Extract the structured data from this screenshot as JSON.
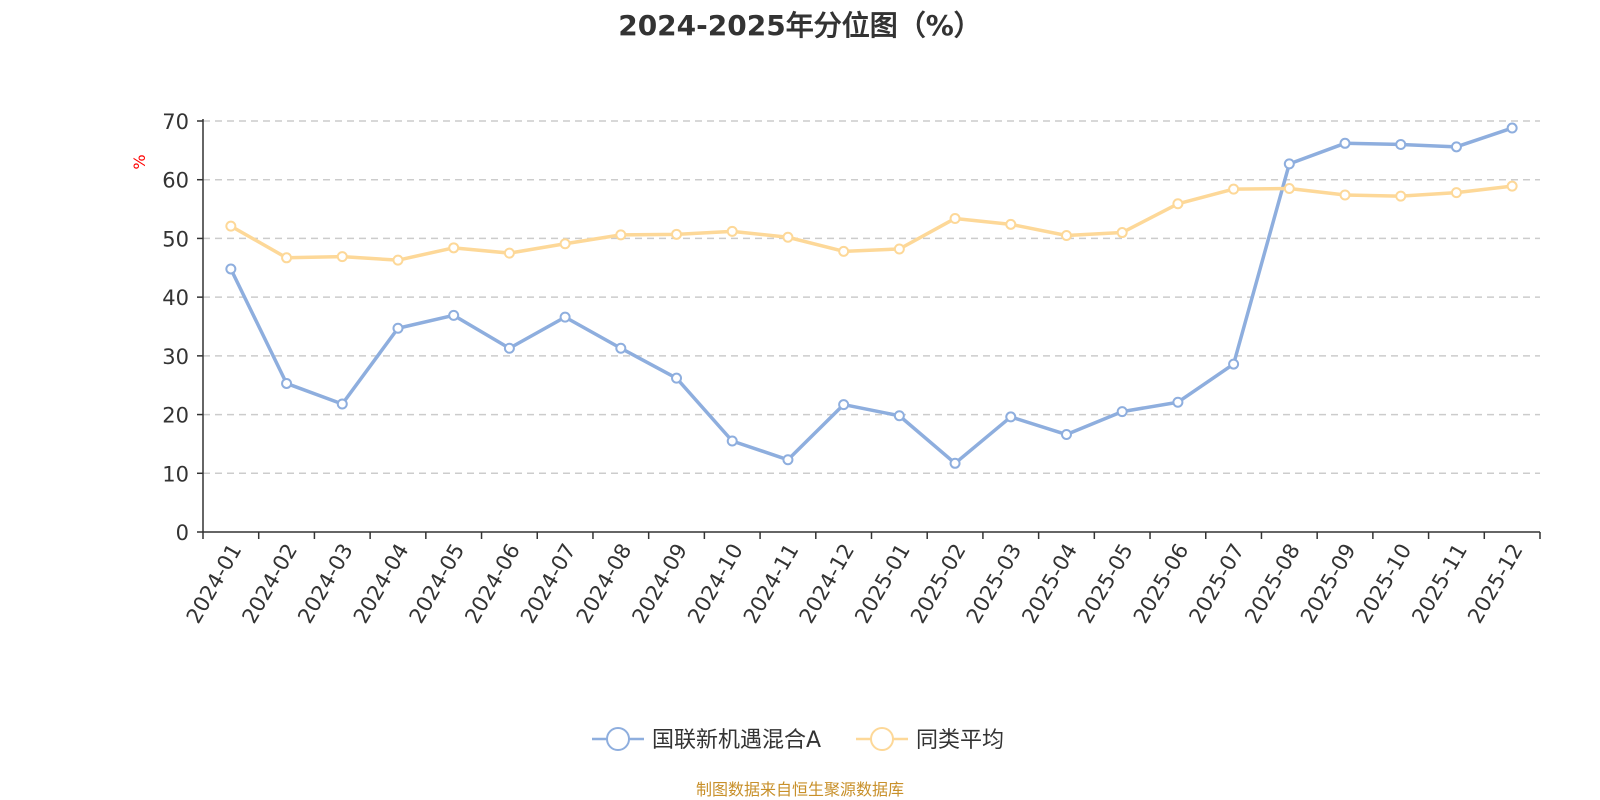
{
  "colors": {
    "series_a": "#8eaede",
    "series_b": "#fdd898",
    "axis": "#333333",
    "grid": "#cccccc",
    "unit": "#ff0000",
    "source": "#c8902a"
  },
  "chart_data": {
    "type": "line",
    "title": "2024-2025年分位图（%）",
    "ylabel": "%",
    "ylim": [
      0,
      70
    ],
    "yticks": [
      0,
      10,
      20,
      30,
      40,
      50,
      60,
      70
    ],
    "grid": true,
    "legend_position": "bottom",
    "categories": [
      "2024-01",
      "2024-02",
      "2024-03",
      "2024-04",
      "2024-05",
      "2024-06",
      "2024-07",
      "2024-08",
      "2024-09",
      "2024-10",
      "2024-11",
      "2024-12",
      "2025-01",
      "2025-02",
      "2025-03",
      "2025-04",
      "2025-05",
      "2025-06",
      "2025-07",
      "2025-08",
      "2025-09",
      "2025-10",
      "2025-11",
      "2025-12"
    ],
    "series": [
      {
        "name": "国联新机遇混合A",
        "color": "#8eaede",
        "values": [
          44.8,
          25.3,
          21.8,
          34.7,
          36.9,
          31.3,
          36.6,
          31.3,
          26.2,
          15.5,
          12.3,
          21.7,
          19.8,
          11.7,
          19.6,
          16.6,
          20.5,
          22.1,
          28.6,
          62.7,
          66.2,
          66.0,
          65.6,
          68.8
        ]
      },
      {
        "name": "同类平均",
        "color": "#fdd898",
        "values": [
          52.1,
          46.7,
          46.9,
          46.3,
          48.4,
          47.5,
          49.1,
          50.6,
          50.7,
          51.2,
          50.2,
          47.8,
          48.2,
          53.4,
          52.4,
          50.5,
          51.0,
          55.9,
          58.4,
          58.5,
          57.4,
          57.2,
          57.8,
          58.9
        ]
      }
    ]
  },
  "source_note": "制图数据来自恒生聚源数据库"
}
